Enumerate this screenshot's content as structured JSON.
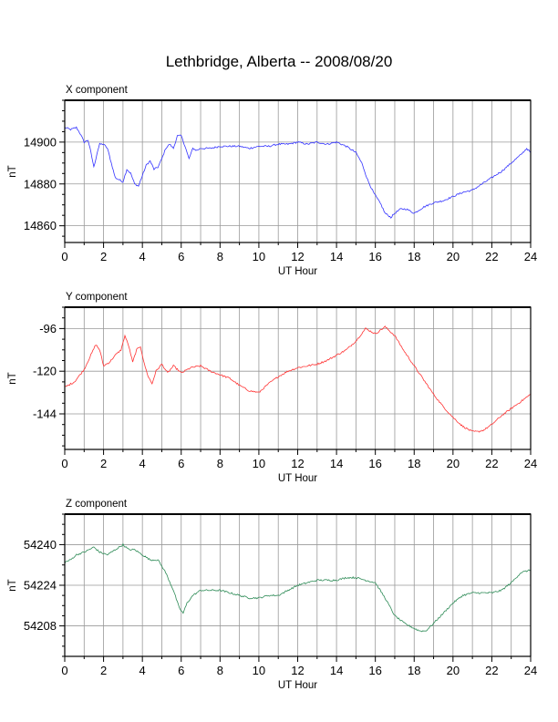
{
  "title": "Lethbridge, Alberta -- 2008/08/20",
  "colors": {
    "x": "#3333ff",
    "y": "#ff3333",
    "z": "#2e8b57",
    "grid": "#999999",
    "frame": "#000000"
  },
  "chart_data": [
    {
      "type": "line",
      "panel_label": "X component",
      "xlabel": "UT Hour",
      "ylabel": "nT",
      "xlim": [
        0,
        24
      ],
      "ylim": [
        14852,
        14920
      ],
      "xticks": [
        0,
        2,
        4,
        6,
        8,
        10,
        12,
        14,
        16,
        18,
        20,
        22,
        24
      ],
      "yticks": [
        14860,
        14880,
        14900
      ],
      "grid": true,
      "series": [
        {
          "color": "#3333ff",
          "x": [
            0,
            0.3,
            0.6,
            0.8,
            1.0,
            1.2,
            1.35,
            1.5,
            1.7,
            1.8,
            2.0,
            2.2,
            2.4,
            2.6,
            2.8,
            3.0,
            3.2,
            3.4,
            3.6,
            3.8,
            4.0,
            4.2,
            4.4,
            4.6,
            4.8,
            5.0,
            5.2,
            5.4,
            5.6,
            5.8,
            6.0,
            6.2,
            6.4,
            6.6,
            6.8,
            7.0,
            7.5,
            8.0,
            8.5,
            9.0,
            9.5,
            10.0,
            10.5,
            11.0,
            11.5,
            12.0,
            12.5,
            13.0,
            13.5,
            14.0,
            14.5,
            15.0,
            15.3,
            15.6,
            15.9,
            16.1,
            16.3,
            16.5,
            16.8,
            17.0,
            17.3,
            17.6,
            18.0,
            18.5,
            19.0,
            19.5,
            20.0,
            20.5,
            21.0,
            21.5,
            22.0,
            22.5,
            23.0,
            23.5,
            23.8,
            24.0
          ],
          "y": [
            14907,
            14906,
            14907,
            14904,
            14900,
            14901,
            14895,
            14888,
            14896,
            14899,
            14899,
            14897,
            14890,
            14883,
            14882,
            14881,
            14887,
            14885,
            14880,
            14879,
            14884,
            14889,
            14891,
            14887,
            14888,
            14892,
            14897,
            14899,
            14897,
            14903,
            14903,
            14898,
            14892,
            14897,
            14896,
            14897,
            14897,
            14898,
            14898,
            14898,
            14897,
            14898,
            14898,
            14899,
            14899,
            14900,
            14899,
            14900,
            14899,
            14900,
            14898,
            14895,
            14890,
            14882,
            14876,
            14873,
            14870,
            14866,
            14864,
            14866,
            14868,
            14868,
            14866,
            14869,
            14871,
            14872,
            14874,
            14876,
            14877,
            14880,
            14883,
            14886,
            14890,
            14894,
            14897,
            14895
          ]
        }
      ]
    },
    {
      "type": "line",
      "panel_label": "Y component",
      "xlabel": "UT Hour",
      "ylabel": "nT",
      "xlim": [
        0,
        24
      ],
      "ylim": [
        -164,
        -84
      ],
      "xticks": [
        0,
        2,
        4,
        6,
        8,
        10,
        12,
        14,
        16,
        18,
        20,
        22,
        24
      ],
      "yticks": [
        -144,
        -120,
        -96
      ],
      "grid": true,
      "series": [
        {
          "color": "#ff3333",
          "x": [
            0,
            0.5,
            1.0,
            1.3,
            1.6,
            1.8,
            2.0,
            2.3,
            2.6,
            2.9,
            3.1,
            3.3,
            3.5,
            3.7,
            3.9,
            4.1,
            4.3,
            4.5,
            4.7,
            5.0,
            5.3,
            5.6,
            6.0,
            6.5,
            7.0,
            7.5,
            8.0,
            8.5,
            9.0,
            9.5,
            10.0,
            10.5,
            11.0,
            11.5,
            12.0,
            12.5,
            13.0,
            13.5,
            14.0,
            14.5,
            15.0,
            15.5,
            16.0,
            16.5,
            17.0,
            17.5,
            18.0,
            18.5,
            19.0,
            19.5,
            20.0,
            20.5,
            21.0,
            21.3,
            21.6,
            22.0,
            22.5,
            23.0,
            23.5,
            24.0
          ],
          "y": [
            -129,
            -126,
            -119,
            -112,
            -105,
            -108,
            -117,
            -115,
            -111,
            -108,
            -100,
            -106,
            -115,
            -108,
            -106,
            -116,
            -123,
            -127,
            -120,
            -116,
            -121,
            -117,
            -121,
            -118,
            -117,
            -120,
            -122,
            -124,
            -128,
            -131,
            -132,
            -127,
            -123,
            -120,
            -118,
            -117,
            -116,
            -114,
            -111,
            -108,
            -103,
            -96,
            -99,
            -95,
            -100,
            -109,
            -117,
            -125,
            -133,
            -140,
            -146,
            -151,
            -154,
            -154,
            -153,
            -150,
            -145,
            -141,
            -137,
            -133
          ]
        }
      ]
    },
    {
      "type": "line",
      "panel_label": "Z component",
      "xlabel": "UT Hour",
      "ylabel": "nT",
      "xlim": [
        0,
        24
      ],
      "ylim": [
        54196,
        54252
      ],
      "xticks": [
        0,
        2,
        4,
        6,
        8,
        10,
        12,
        14,
        16,
        18,
        20,
        22,
        24
      ],
      "yticks": [
        54208,
        54224,
        54240
      ],
      "grid": true,
      "series": [
        {
          "color": "#2e8b57",
          "x": [
            0,
            0.3,
            0.6,
            1.0,
            1.5,
            1.8,
            2.2,
            2.6,
            3.0,
            3.3,
            3.6,
            4.0,
            4.4,
            4.8,
            5.2,
            5.6,
            5.9,
            6.1,
            6.3,
            6.6,
            7.0,
            7.5,
            8.0,
            8.5,
            9.0,
            9.5,
            10.0,
            10.5,
            11.0,
            11.5,
            12.0,
            12.5,
            13.0,
            13.5,
            14.0,
            14.5,
            15.0,
            15.5,
            16.0,
            16.5,
            17.0,
            17.5,
            18.0,
            18.3,
            18.6,
            19.0,
            19.5,
            20.0,
            20.5,
            21.0,
            21.5,
            22.0,
            22.5,
            23.0,
            23.5,
            24.0
          ],
          "y": [
            54233,
            54234,
            54236,
            54237,
            54239,
            54237,
            54236,
            54238,
            54240,
            54238,
            54238,
            54236,
            54234,
            54234,
            54229,
            54222,
            54215,
            54213,
            54217,
            54220,
            54222,
            54222,
            54222,
            54221,
            54220,
            54219,
            54219,
            54220,
            54220,
            54222,
            54224,
            54225,
            54226,
            54226,
            54226,
            54227,
            54227,
            54226,
            54225,
            54219,
            54212,
            54209,
            54207,
            54206,
            54206,
            54209,
            54213,
            54217,
            54220,
            54221,
            54221,
            54221,
            54222,
            54225,
            54229,
            54230
          ]
        }
      ]
    }
  ]
}
